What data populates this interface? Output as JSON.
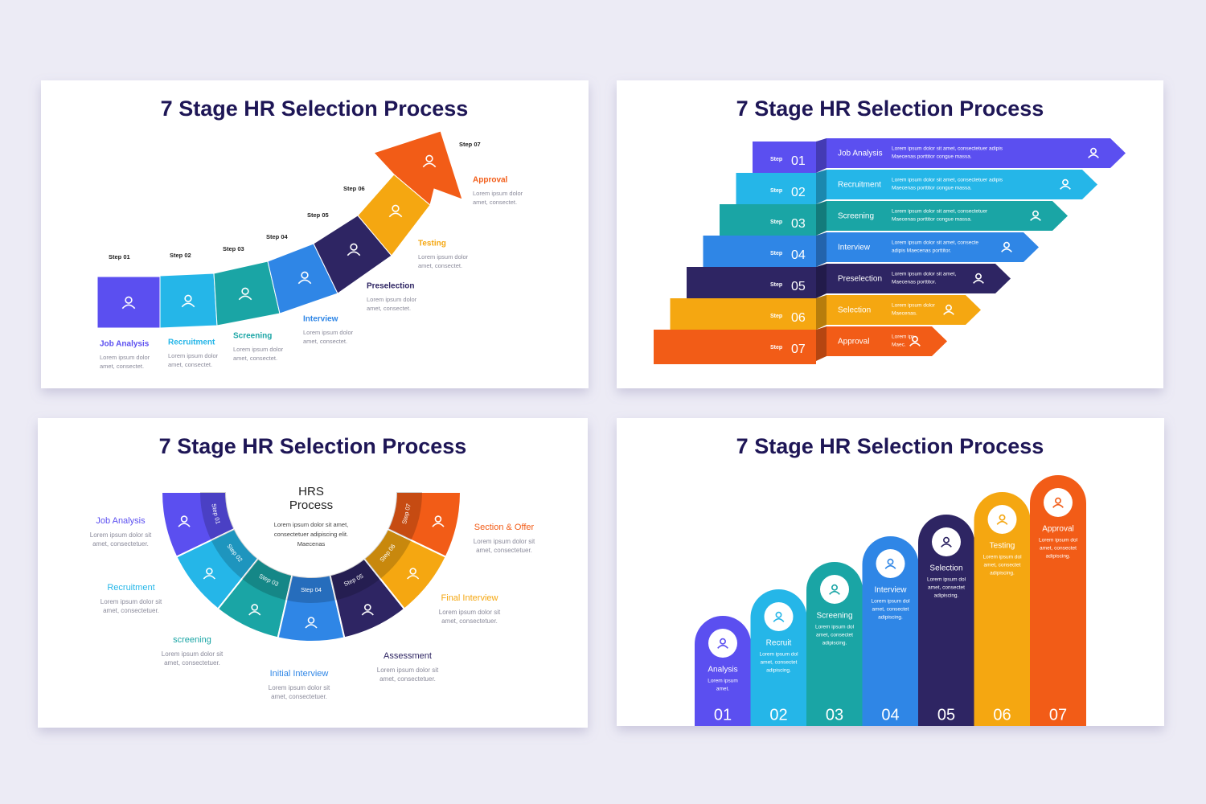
{
  "slides": [
    {
      "title": "7 Stage HR Selection Process",
      "steps": [
        {
          "step": "Step 01",
          "label": "Job Analysis",
          "desc": [
            "Lorem ipsum dolor",
            "amet, consectet."
          ]
        },
        {
          "step": "Step 02",
          "label": "Recruitment",
          "desc": [
            "Lorem ipsum dolor",
            "amet, consectet."
          ]
        },
        {
          "step": "Step 03",
          "label": "Screening",
          "desc": [
            "Lorem ipsum dolor",
            "amet, consectet."
          ]
        },
        {
          "step": "Step 04",
          "label": "Interview",
          "desc": [
            "Lorem ipsum dolor",
            "amet, consectet."
          ]
        },
        {
          "step": "Step 05",
          "label": "Preselection",
          "desc": [
            "Lorem ipsum dolor",
            "amet, consectet."
          ]
        },
        {
          "step": "Step 06",
          "label": "Testing",
          "desc": [
            "Lorem ipsum dolor",
            "amet, consectet."
          ]
        },
        {
          "step": "Step 07",
          "label": "Approval",
          "desc": [
            "Lorem ipsum dolor",
            "amet, consectet."
          ]
        }
      ]
    },
    {
      "title": "7 Stage HR Selection Process",
      "steps": [
        {
          "step": "Step",
          "number": "01",
          "label": "Job Analysis",
          "desc": [
            "Lorem ipsum dolor sit amet, consectetuer adipis",
            "Maecenas porttitor congue massa."
          ]
        },
        {
          "step": "Step",
          "number": "02",
          "label": "Recruitment",
          "desc": [
            "Lorem ipsum dolor sit amet, consectetuer adipis",
            "Maecenas porttitor congue massa."
          ]
        },
        {
          "step": "Step",
          "number": "03",
          "label": "Screening",
          "desc": [
            "Lorem ipsum dolor sit amet, consectetuer",
            "Maecenas porttitor congue massa."
          ]
        },
        {
          "step": "Step",
          "number": "04",
          "label": "Interview",
          "desc": [
            "Lorem ipsum dolor sit amet, consecte",
            "adipis Maecenas porttitor."
          ]
        },
        {
          "step": "Step",
          "number": "05",
          "label": "Preselection",
          "desc": [
            "Lorem ipsum dolor sit amet,",
            "Maecenas porttitor."
          ]
        },
        {
          "step": "Step",
          "number": "06",
          "label": "Selection",
          "desc": [
            "Lorem ipsum dolor",
            "Maecenas."
          ]
        },
        {
          "step": "Step",
          "number": "07",
          "label": "Approval",
          "desc": [
            "Lorem ipr",
            "Maec."
          ]
        }
      ]
    },
    {
      "title": "7 Stage HR Selection Process",
      "center": {
        "title": [
          "HRS",
          "Process"
        ],
        "desc": [
          "Lorem ipsum dolor sit amet,",
          "consectetuer adipiscing elit.",
          "Maecenas"
        ]
      },
      "steps": [
        {
          "step": "Step 01",
          "label": "Job Analysis",
          "desc": [
            "Lorem ipsum dolor sit",
            "amet, consectetuer."
          ]
        },
        {
          "step": "Step 02",
          "label": "Recruitment",
          "desc": [
            "Lorem ipsum dolor sit",
            "amet, consectetuer."
          ]
        },
        {
          "step": "Step 03",
          "label": "screening",
          "desc": [
            "Lorem ipsum dolor sit",
            "amet, consectetuer."
          ]
        },
        {
          "step": "Step 04",
          "label": "Initial Interview",
          "desc": [
            "Lorem ipsum dolor sit",
            "amet, consectetuer."
          ]
        },
        {
          "step": "Step 05",
          "label": "Assessment",
          "desc": [
            "Lorem ipsum dolor sit",
            "amet, consectetuer."
          ]
        },
        {
          "step": "Step 06",
          "label": "Final Interview",
          "desc": [
            "Lorem ipsum dolor sit",
            "amet, consectetuer."
          ]
        },
        {
          "step": "Step 07",
          "label": "Section & Offer",
          "desc": [
            "Lorem ipsum dolor sit",
            "amet, consectetuer."
          ]
        }
      ]
    },
    {
      "title": "7 Stage HR Selection Process",
      "steps": [
        {
          "number": "01",
          "label": "Analysis",
          "desc": [
            "Lorem ipsum",
            "amet."
          ]
        },
        {
          "number": "02",
          "label": "Recruit",
          "desc": [
            "Lorem ipsum dol",
            "amet, consectet",
            "adipiscing."
          ]
        },
        {
          "number": "03",
          "label": "Screening",
          "desc": [
            "Lorem ipsum dol",
            "amet, consectet",
            "adipiscing."
          ]
        },
        {
          "number": "04",
          "label": "Interview",
          "desc": [
            "Lorem ipsum dol",
            "amet, consectet",
            "adipiscing."
          ]
        },
        {
          "number": "05",
          "label": "Selection",
          "desc": [
            "Lorem ipsum dol",
            "amet, consectet",
            "adipiscing."
          ]
        },
        {
          "number": "06",
          "label": "Testing",
          "desc": [
            "Lorem ipsum dol",
            "amet, consectet",
            "adipiscing."
          ]
        },
        {
          "number": "07",
          "label": "Approval",
          "desc": [
            "Lorem ipsum dol",
            "amet, consectet",
            "adipiscing."
          ]
        }
      ]
    }
  ]
}
